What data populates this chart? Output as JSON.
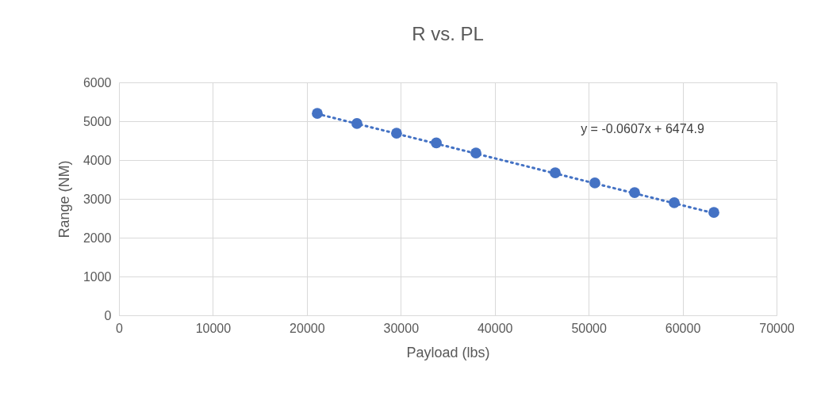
{
  "chart_data": {
    "type": "scatter",
    "title": "R vs. PL",
    "xlabel": "Payload (lbs)",
    "ylabel": "Range (NM)",
    "x": [
      21110,
      25330,
      29550,
      33780,
      38000,
      46440,
      50660,
      54890,
      59110,
      63330
    ],
    "series": [
      {
        "type": "scatter",
        "color": "#4472c4",
        "marker": "circle",
        "values": [
          5200,
          4940,
          4690,
          4440,
          4180,
          3670,
          3410,
          3160,
          2900,
          2650
        ]
      },
      {
        "type": "line",
        "color": "#4472c4",
        "line_style": "dotted",
        "marker": "none",
        "x": [
          21110,
          63330
        ],
        "values": [
          5190,
          2630
        ]
      }
    ],
    "xlim": [
      0,
      70000
    ],
    "xticks": [
      0,
      10000,
      20000,
      30000,
      40000,
      50000,
      60000,
      70000
    ],
    "ylim": [
      0,
      6000
    ],
    "yticks": [
      0,
      1000,
      2000,
      3000,
      4000,
      5000,
      6000
    ],
    "grid": true,
    "annotations": [
      "y = -0.0607x + 6474.9"
    ]
  }
}
